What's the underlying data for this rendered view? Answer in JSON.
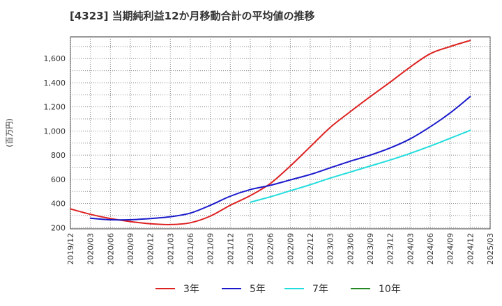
{
  "chart_data": {
    "type": "line",
    "title": "[4323]  当期純利益12か月移動合計の平均値の推移",
    "ylabel": "(百万円)",
    "xlabel": "",
    "ylim": [
      190,
      1780
    ],
    "yticks": [
      200,
      400,
      600,
      800,
      1000,
      1200,
      1400,
      1600
    ],
    "ytick_labels": [
      "200",
      "400",
      "600",
      "800",
      "1,000",
      "1,200",
      "1,400",
      "1,600"
    ],
    "x_categories": [
      "2019/12",
      "2020/03",
      "2020/06",
      "2020/09",
      "2020/12",
      "2021/03",
      "2021/06",
      "2021/09",
      "2021/12",
      "2022/03",
      "2022/06",
      "2022/09",
      "2022/12",
      "2023/03",
      "2023/06",
      "2023/09",
      "2023/12",
      "2024/03",
      "2024/06",
      "2024/09",
      "2024/12",
      "2025/03"
    ],
    "grid": true,
    "legend_position": "bottom",
    "series": [
      {
        "name": "3年",
        "color": "#dd2222",
        "x": [
          "2019/12",
          "2020/03",
          "2020/06",
          "2020/09",
          "2020/12",
          "2021/03",
          "2021/06",
          "2021/09",
          "2021/12",
          "2022/03",
          "2022/06",
          "2022/09",
          "2022/12",
          "2023/03",
          "2023/06",
          "2023/09",
          "2023/12",
          "2024/03",
          "2024/06",
          "2024/09",
          "2024/12"
        ],
        "values": [
          355,
          310,
          275,
          250,
          232,
          225,
          240,
          295,
          385,
          465,
          565,
          710,
          870,
          1030,
          1160,
          1285,
          1405,
          1530,
          1640,
          1700,
          1750
        ]
      },
      {
        "name": "5年",
        "color": "#1a1acc",
        "x": [
          "2020/03",
          "2020/06",
          "2020/09",
          "2020/12",
          "2021/03",
          "2021/06",
          "2021/09",
          "2021/12",
          "2022/03",
          "2022/06",
          "2022/09",
          "2022/12",
          "2023/03",
          "2023/06",
          "2023/09",
          "2023/12",
          "2024/03",
          "2024/06",
          "2024/09",
          "2024/12"
        ],
        "values": [
          278,
          265,
          265,
          275,
          290,
          320,
          385,
          460,
          515,
          550,
          595,
          640,
          695,
          750,
          800,
          860,
          935,
          1035,
          1150,
          1285
        ]
      },
      {
        "name": "7年",
        "color": "#22dddd",
        "x": [
          "2022/03",
          "2022/06",
          "2022/09",
          "2022/12",
          "2023/03",
          "2023/06",
          "2023/09",
          "2023/12",
          "2024/03",
          "2024/06",
          "2024/09",
          "2024/12"
        ],
        "values": [
          410,
          455,
          505,
          555,
          610,
          660,
          710,
          760,
          815,
          875,
          940,
          1005
        ]
      },
      {
        "name": "10年",
        "color": "#228822",
        "x": [],
        "values": []
      }
    ]
  }
}
